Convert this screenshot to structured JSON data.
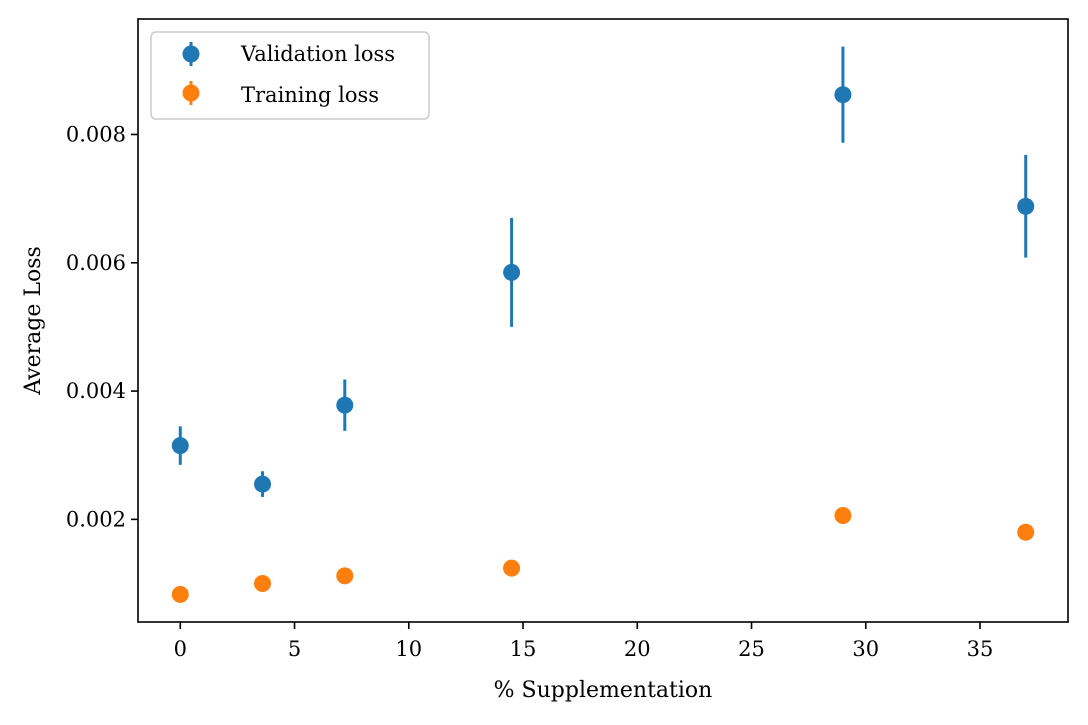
{
  "chart_data": {
    "type": "scatter",
    "title": "",
    "xlabel": "% Supplementation",
    "ylabel": "Average Loss",
    "xlim": [
      -1.85,
      38.85
    ],
    "ylim": [
      0.0004,
      0.0098
    ],
    "xticks": [
      0,
      5,
      10,
      15,
      20,
      25,
      30,
      35
    ],
    "xtick_labels": [
      "0",
      "5",
      "10",
      "15",
      "20",
      "25",
      "30",
      "35"
    ],
    "yticks": [
      0.002,
      0.004,
      0.006,
      0.008
    ],
    "ytick_labels": [
      "0.002",
      "0.004",
      "0.006",
      "0.008"
    ],
    "grid": false,
    "legend_position": "top-left",
    "series": [
      {
        "name": "Validation loss",
        "color": "#1f77b4",
        "x": [
          0,
          3.6,
          7.2,
          14.5,
          29.0,
          37.0
        ],
        "y": [
          0.00315,
          0.00255,
          0.00378,
          0.00585,
          0.00862,
          0.00688
        ],
        "yerr": [
          0.0003,
          0.0002,
          0.0004,
          0.00085,
          0.00075,
          0.0008
        ]
      },
      {
        "name": "Training loss",
        "color": "#ff7f0e",
        "x": [
          0,
          3.6,
          7.2,
          14.5,
          29.0,
          37.0
        ],
        "y": [
          0.00083,
          0.001,
          0.00112,
          0.00124,
          0.00206,
          0.0018
        ],
        "yerr": [
          0.0,
          0.0,
          0.0,
          0.0,
          0.0,
          0.0
        ]
      }
    ]
  }
}
